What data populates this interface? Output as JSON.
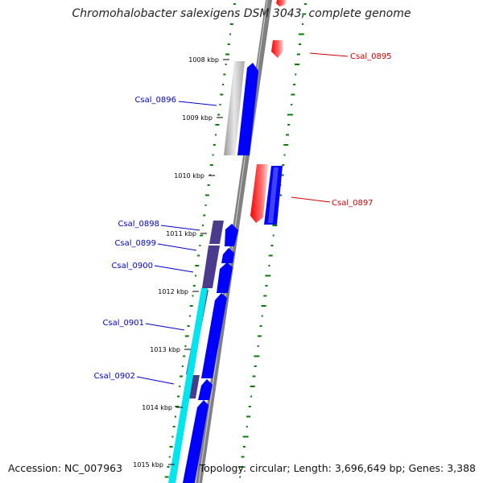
{
  "title": "Chromohalobacter salexigens DSM 3043, complete genome",
  "accession": "Accession: NC_007963",
  "summary": "Topology: circular; Length: 3,696,649 bp; Genes: 3,388",
  "kbp_labels": [
    "1008 kbp",
    "1009 kbp",
    "1010 kbp",
    "1011 kbp",
    "1012 kbp",
    "1013 kbp",
    "1014 kbp",
    "1015 kbp"
  ],
  "colors": {
    "forward_gene": "#0000ff",
    "reverse_gene": "#ff0000",
    "forward_label": "#0000cc",
    "reverse_label": "#cc0000",
    "gc_skew_dots": "#0a7a0a",
    "backbone": "#808080",
    "cds_purple": "#4a3b8c",
    "cds_cyan": "#00e5ee",
    "cds_gray": "#b0b0b0"
  },
  "genes": [
    {
      "name": "Csal_0895",
      "strand": "reverse"
    },
    {
      "name": "Csal_0896",
      "strand": "forward"
    },
    {
      "name": "Csal_0897",
      "strand": "reverse"
    },
    {
      "name": "Csal_0898",
      "strand": "forward"
    },
    {
      "name": "Csal_0899",
      "strand": "forward"
    },
    {
      "name": "Csal_0900",
      "strand": "forward"
    },
    {
      "name": "Csal_0901",
      "strand": "forward"
    },
    {
      "name": "Csal_0902",
      "strand": "forward"
    }
  ]
}
